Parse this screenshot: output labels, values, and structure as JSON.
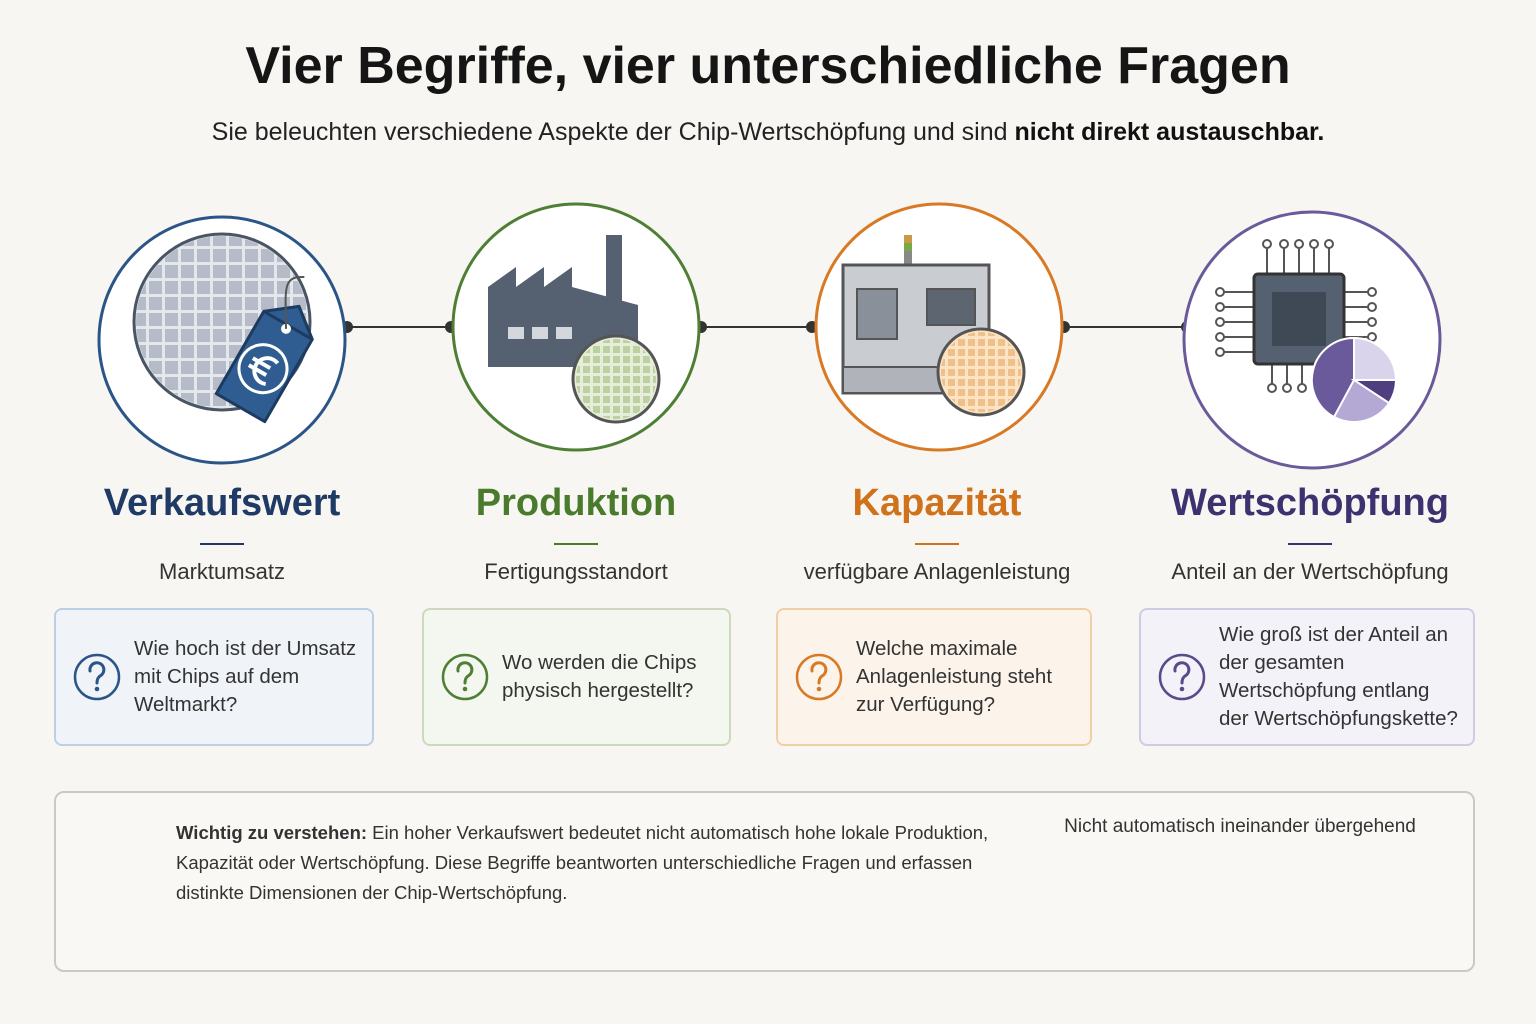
{
  "header": {
    "title": "Vier Begriffe, vier unterschiedliche Fragen",
    "subtitle": {
      "text": "Sie beleuchten verschiedene Aspekte der Chip-Wertschöpfung und sind ",
      "emphasis": "nicht direkt austauschbar."
    }
  },
  "concepts": [
    {
      "name": "Verkaufswert",
      "subtitle": "Marktumsatz",
      "question": "Wie hoch ist der Umsatz mit Chips auf dem Weltmarkt?"
    },
    {
      "name": "Produktion",
      "subtitle": "Fertigungsstandort",
      "question": "Wo werden die Chips physisch hergestellt?"
    },
    {
      "name": "Kapazität",
      "subtitle": "verfügbare Anlagenleistung",
      "question": "Welche maximale Anlagenleistung steht zur Verfügung?"
    },
    {
      "name": "Wertschöpfung",
      "subtitle": "Anteil an der Wertschöpfung",
      "question": "Wie groß ist der Anteil an der gesamten Wertschöpfung entlang der Wertschöpfungskette?"
    }
  ],
  "note": {
    "label": "Wichtig zu verstehen:",
    "text": "Ein hoher Verkaufswert bedeutet nicht automatisch hohe lokale Produktion, Kapazität oder Wertschöpfung. Diese Begriffe beantworten unterschiedliche Fragen und erfassen distinkte Dimensionen der Chip-Wertschöpfung."
  },
  "legend": {
    "caption": "Nicht automatisch ineinander übergehend"
  }
}
